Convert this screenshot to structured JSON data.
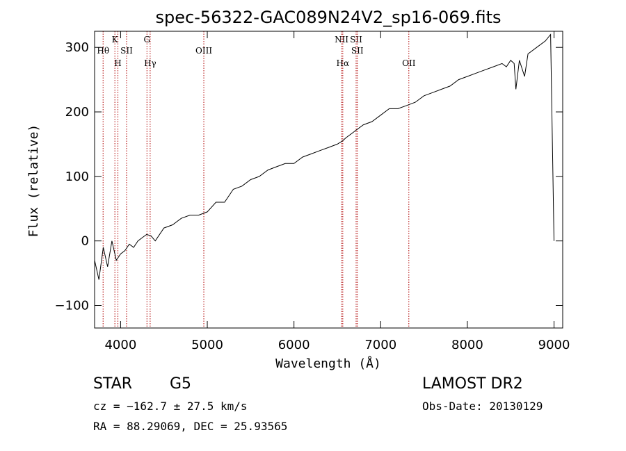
{
  "chart_data": {
    "type": "line",
    "title": "spec-56322-GAC089N24V2_sp16-069.fits",
    "xlabel": "Wavelength (Å)",
    "ylabel": "Flux (relative)",
    "xlim": [
      3700,
      9100
    ],
    "ylim": [
      -135,
      325
    ],
    "xticks": [
      4000,
      5000,
      6000,
      7000,
      8000,
      9000
    ],
    "yticks": [
      -100,
      0,
      100,
      200,
      300
    ],
    "grid": false,
    "series": [
      {
        "x": [
          3700,
          3750,
          3800,
          3850,
          3900,
          3950,
          4000,
          4050,
          4100,
          4150,
          4200,
          4250,
          4300,
          4350,
          4400,
          4500,
          4600,
          4700,
          4800,
          4900,
          5000,
          5100,
          5200,
          5300,
          5400,
          5500,
          5600,
          5700,
          5800,
          5900,
          6000,
          6100,
          6200,
          6300,
          6400,
          6500,
          6560,
          6600,
          6700,
          6800,
          6900,
          7000,
          7100,
          7200,
          7300,
          7400,
          7500,
          7600,
          7700,
          7800,
          7900,
          8000,
          8100,
          8200,
          8300,
          8400,
          8450,
          8500,
          8540,
          8560,
          8600,
          8660,
          8700,
          8800,
          8900,
          8960,
          9000
        ],
        "y": [
          -30,
          -60,
          -10,
          -40,
          0,
          -30,
          -20,
          -15,
          -5,
          -10,
          0,
          5,
          10,
          8,
          0,
          20,
          25,
          35,
          40,
          40,
          45,
          60,
          60,
          80,
          85,
          95,
          100,
          110,
          115,
          120,
          120,
          130,
          135,
          140,
          145,
          150,
          155,
          160,
          170,
          180,
          185,
          195,
          205,
          205,
          210,
          215,
          225,
          230,
          235,
          240,
          250,
          255,
          260,
          265,
          270,
          275,
          270,
          280,
          275,
          235,
          280,
          255,
          290,
          300,
          310,
          320,
          0
        ]
      }
    ],
    "line_markers": [
      {
        "name": "Hθ",
        "wave": 3798,
        "row": 2
      },
      {
        "name": "K",
        "wave": 3934,
        "row": 1
      },
      {
        "name": "H",
        "wave": 3969,
        "row": 3
      },
      {
        "name": "SII",
        "wave": 4069,
        "row": 2
      },
      {
        "name": "G",
        "wave": 4304,
        "row": 1
      },
      {
        "name": "Hγ",
        "wave": 4341,
        "row": 3
      },
      {
        "name": "OIII",
        "wave": 4960,
        "row": 2
      },
      {
        "name": "NII",
        "wave": 6549,
        "row": 1
      },
      {
        "name": "Hα",
        "wave": 6563,
        "row": 3
      },
      {
        "name": "SII",
        "wave": 6717,
        "row": 1
      },
      {
        "name": "SII",
        "wave": 6731,
        "row": 2
      },
      {
        "name": "OII",
        "wave": 7325,
        "row": 3
      }
    ]
  },
  "footer": {
    "obj_class": "STAR",
    "subclass": "G5",
    "survey": "LAMOST DR2",
    "cz": "cz = −162.7 ± 27.5 km/s",
    "obs_date": "Obs-Date: 20130129",
    "coords": "RA =  88.29069, DEC =  25.93565"
  }
}
